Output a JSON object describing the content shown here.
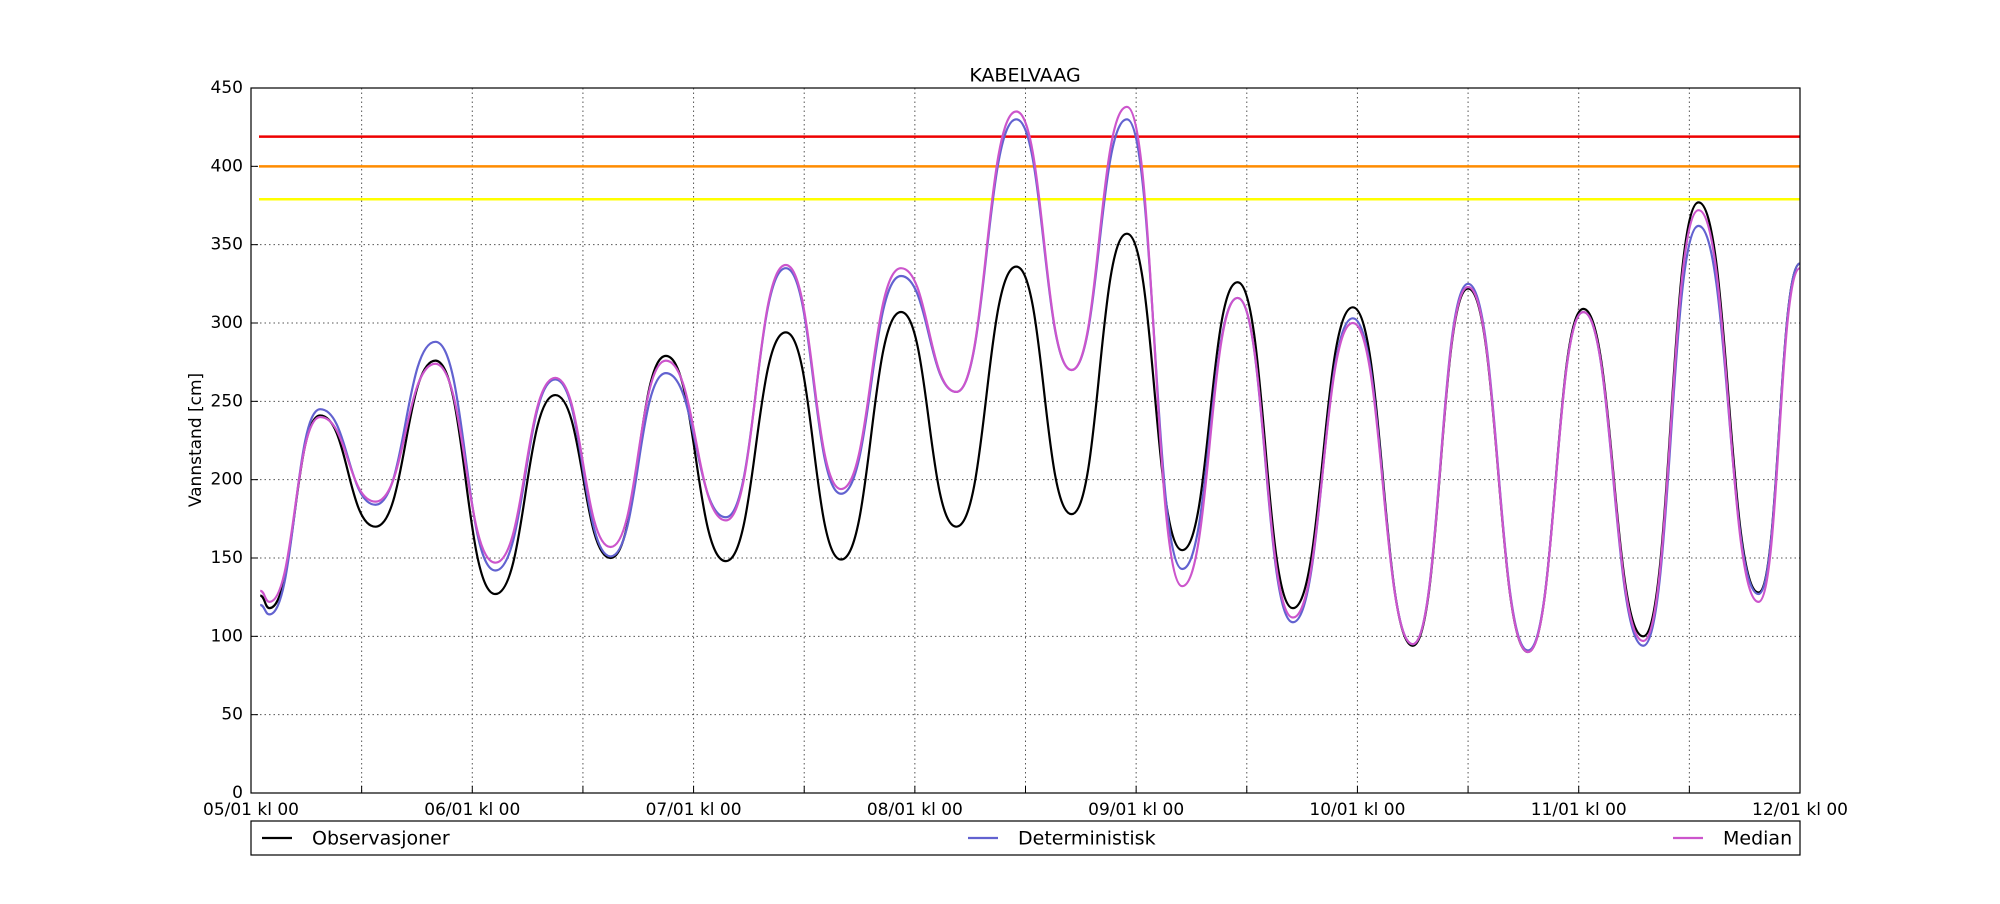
{
  "chart_data": {
    "type": "line",
    "title": "KABELVAAG",
    "ylabel": "Vannstand [cm]",
    "x": [
      1,
      2,
      7.5,
      13.5,
      20,
      26.5,
      33,
      39,
      45,
      51.5,
      58,
      64,
      70.5,
      76.5,
      83,
      89,
      95,
      101,
      107,
      113,
      119.5,
      126,
      132,
      138.5,
      144.5,
      151,
      157,
      163.5,
      168
    ],
    "series": [
      {
        "name": "Observasjoner",
        "color": "#000000",
        "values": [
          126,
          118,
          241,
          170,
          276,
          127,
          254,
          150,
          279,
          148,
          294,
          149,
          307,
          170,
          336,
          178,
          357,
          155,
          326,
          118,
          310,
          94,
          322,
          90,
          309,
          100,
          377,
          128,
          338
        ]
      },
      {
        "name": "Deterministisk",
        "color": "#6262d0",
        "values": [
          120,
          114,
          245,
          184,
          288,
          142,
          264,
          151,
          268,
          176,
          335,
          191,
          330,
          256,
          430,
          270,
          430,
          143,
          316,
          109,
          303,
          95,
          325,
          91,
          307,
          94,
          362,
          127,
          338
        ]
      },
      {
        "name": "Median",
        "color": "#cc55cc",
        "values": [
          129,
          122,
          240,
          186,
          274,
          147,
          265,
          157,
          276,
          174,
          337,
          194,
          335,
          256,
          435,
          270,
          438,
          132,
          316,
          112,
          300,
          95,
          323,
          90,
          307,
          97,
          372,
          122,
          335
        ]
      }
    ],
    "thresholds": [
      {
        "value": 419,
        "color": "#ee0000"
      },
      {
        "value": 400,
        "color": "#ff8c00"
      },
      {
        "value": 379,
        "color": "#ffff00"
      }
    ],
    "xlim": [
      0,
      168
    ],
    "xticks": [
      {
        "value": 0,
        "label": "05/01 kl 00"
      },
      {
        "value": 24,
        "label": "06/01 kl 00"
      },
      {
        "value": 48,
        "label": "07/01 kl 00"
      },
      {
        "value": 72,
        "label": "08/01 kl 00"
      },
      {
        "value": 96,
        "label": "09/01 kl 00"
      },
      {
        "value": 120,
        "label": "10/01 kl 00"
      },
      {
        "value": 144,
        "label": "11/01 kl 00"
      },
      {
        "value": 168,
        "label": "12/01 kl 00"
      }
    ],
    "xminor": [
      12,
      36,
      60,
      84,
      108,
      132,
      156
    ],
    "ylim": [
      0,
      450
    ],
    "yticks": [
      0,
      50,
      100,
      150,
      200,
      250,
      300,
      350,
      400,
      450
    ],
    "grid": true,
    "legend": "bottom"
  }
}
